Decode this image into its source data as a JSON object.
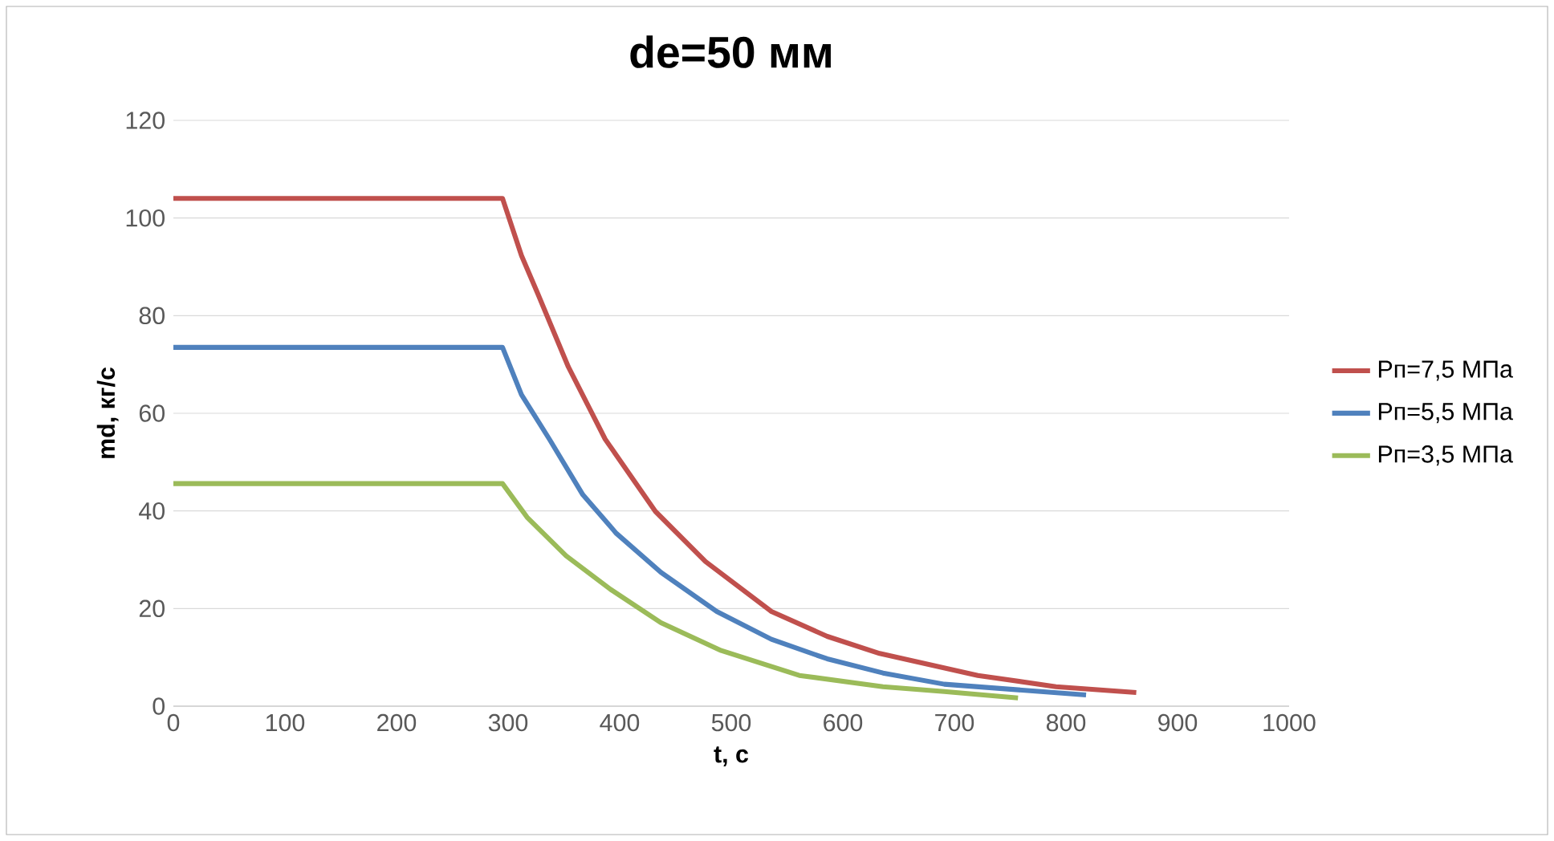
{
  "chart_data": {
    "type": "line",
    "title": "de=50 мм",
    "xlabel": "t, с",
    "ylabel": "md, кг/с",
    "xlim": [
      0,
      1000
    ],
    "ylim": [
      0,
      120
    ],
    "xticks": [
      0,
      100,
      200,
      300,
      400,
      500,
      600,
      700,
      800,
      900,
      1000
    ],
    "yticks": [
      0,
      20,
      40,
      60,
      80,
      100,
      120
    ],
    "grid": "y",
    "legend": "right",
    "marker": "none",
    "line_style": "solid",
    "series": [
      {
        "name": "Pп=7,5 МПа",
        "color": "#c0504d",
        "x": [
          0,
          295,
          312,
          327,
          354,
          387,
          432,
          477,
          536,
          586,
          633,
          721,
          791,
          863
        ],
        "values": [
          104,
          104,
          92.3,
          84.3,
          69.5,
          54.7,
          39.9,
          29.6,
          19.4,
          14.3,
          10.8,
          6.3,
          4.0,
          2.8
        ]
      },
      {
        "name": "Pп=5,5 МПа",
        "color": "#4f81bd",
        "x": [
          0,
          295,
          312,
          337,
          367,
          397,
          437,
          487,
          536,
          586,
          636,
          691,
          818
        ],
        "values": [
          73.5,
          73.5,
          63.8,
          54.7,
          43.3,
          35.4,
          27.4,
          19.4,
          13.7,
          9.7,
          6.8,
          4.5,
          2.3
        ]
      },
      {
        "name": "Pп=3,5 МПа",
        "color": "#9bbb59",
        "x": [
          0,
          295,
          317,
          352,
          392,
          437,
          491,
          561,
          636,
          691,
          757
        ],
        "values": [
          45.6,
          45.6,
          38.7,
          30.8,
          23.9,
          17.1,
          11.4,
          6.3,
          4.0,
          3.0,
          1.7
        ]
      }
    ]
  }
}
